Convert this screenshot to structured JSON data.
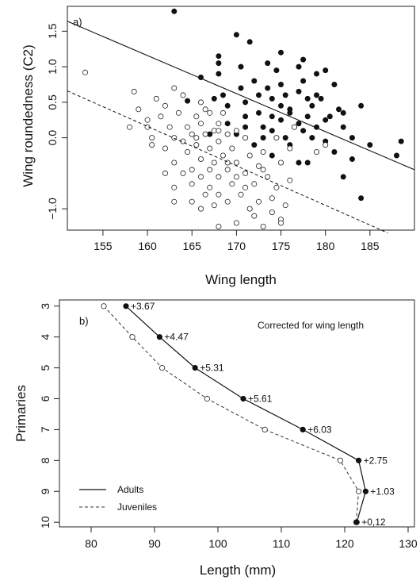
{
  "chart_data": [
    {
      "type": "scatter",
      "panel_label": "a)",
      "xlabel": "Wing length",
      "ylabel": "Wing roundedness (C2)",
      "xlim": [
        151,
        190
      ],
      "ylim": [
        -1.3,
        1.85
      ],
      "xticks": [
        155,
        160,
        165,
        170,
        175,
        180,
        185
      ],
      "yticks": [
        -1.0,
        0.0,
        0.5,
        1.0,
        1.5
      ],
      "ytick_labels": [
        "−1.0",
        "0.0",
        "0.5",
        "1.0",
        "1.5"
      ],
      "grid": false,
      "series": [
        {
          "marker": "filled",
          "points": [
            [
              163,
              1.78
            ],
            [
              164.5,
              0.52
            ],
            [
              166,
              0.85
            ],
            [
              167.5,
              0.55
            ],
            [
              168,
              1.15
            ],
            [
              168,
              1.05
            ],
            [
              168,
              0.9
            ],
            [
              168.5,
              0.6
            ],
            [
              169,
              0.45
            ],
            [
              169,
              0.2
            ],
            [
              170,
              1.45
            ],
            [
              170.5,
              1.0
            ],
            [
              170.5,
              0.7
            ],
            [
              171,
              0.5
            ],
            [
              171,
              0.3
            ],
            [
              171,
              0.15
            ],
            [
              171.5,
              1.35
            ],
            [
              172,
              0.8
            ],
            [
              172,
              -0.1
            ],
            [
              172.5,
              0.6
            ],
            [
              172.5,
              0.35
            ],
            [
              173,
              0.15
            ],
            [
              173.5,
              1.05
            ],
            [
              173.5,
              0.7
            ],
            [
              174,
              0.55
            ],
            [
              174,
              0.3
            ],
            [
              174,
              0.1
            ],
            [
              174.5,
              0.95
            ],
            [
              175,
              1.2
            ],
            [
              175,
              0.75
            ],
            [
              175,
              0.45
            ],
            [
              175,
              0.25
            ],
            [
              175.5,
              0.6
            ],
            [
              175.5,
              0.0
            ],
            [
              176,
              0.35
            ],
            [
              176,
              -0.1
            ],
            [
              176.5,
              0.15
            ],
            [
              177,
              1.0
            ],
            [
              177,
              0.65
            ],
            [
              177,
              0.2
            ],
            [
              177.5,
              1.1
            ],
            [
              177.5,
              0.8
            ],
            [
              177.5,
              0.1
            ],
            [
              178,
              0.55
            ],
            [
              178,
              0.3
            ],
            [
              178,
              -0.35
            ],
            [
              178.5,
              0.0
            ],
            [
              179,
              0.9
            ],
            [
              179,
              0.15
            ],
            [
              179.5,
              0.55
            ],
            [
              180,
              0.25
            ],
            [
              180,
              -0.05
            ],
            [
              180.5,
              0.3
            ],
            [
              181,
              0.75
            ],
            [
              181,
              -0.2
            ],
            [
              181.5,
              0.4
            ],
            [
              182,
              0.15
            ],
            [
              182,
              -0.55
            ],
            [
              183,
              0.0
            ],
            [
              184,
              0.45
            ],
            [
              184,
              -0.85
            ],
            [
              185,
              -0.1
            ],
            [
              188,
              -0.25
            ],
            [
              188.5,
              -0.05
            ],
            [
              167,
              0.05
            ],
            [
              170,
              0.05
            ],
            [
              173,
              0.0
            ],
            [
              174,
              -0.25
            ],
            [
              176,
              0.4
            ],
            [
              177,
              -0.35
            ],
            [
              179,
              0.6
            ],
            [
              180,
              0.95
            ],
            [
              182,
              0.35
            ],
            [
              183,
              -0.3
            ],
            [
              178.5,
              0.45
            ]
          ]
        },
        {
          "marker": "open",
          "points": [
            [
              153,
              0.92
            ],
            [
              158,
              0.15
            ],
            [
              158.5,
              0.65
            ],
            [
              159,
              0.4
            ],
            [
              160,
              0.25
            ],
            [
              160.5,
              0.0
            ],
            [
              160.5,
              -0.1
            ],
            [
              161,
              0.55
            ],
            [
              161.5,
              0.3
            ],
            [
              162,
              0.45
            ],
            [
              162,
              -0.15
            ],
            [
              162.5,
              0.15
            ],
            [
              163,
              0.0
            ],
            [
              163,
              -0.35
            ],
            [
              163,
              -0.7
            ],
            [
              163,
              -0.9
            ],
            [
              163.5,
              0.35
            ],
            [
              164,
              0.6
            ],
            [
              164,
              -0.5
            ],
            [
              164.5,
              0.15
            ],
            [
              164.5,
              -0.2
            ],
            [
              165,
              0.05
            ],
            [
              165,
              -0.45
            ],
            [
              165,
              -0.65
            ],
            [
              165.5,
              0.3
            ],
            [
              165.5,
              -0.1
            ],
            [
              166,
              0.5
            ],
            [
              166,
              0.2
            ],
            [
              166,
              -0.3
            ],
            [
              166,
              -0.55
            ],
            [
              166,
              -1.0
            ],
            [
              166.5,
              0.05
            ],
            [
              166.5,
              -0.8
            ],
            [
              167,
              0.35
            ],
            [
              167,
              -0.15
            ],
            [
              167,
              -0.45
            ],
            [
              167,
              -0.7
            ],
            [
              167.5,
              0.1
            ],
            [
              167.5,
              -0.35
            ],
            [
              167.5,
              -0.95
            ],
            [
              168,
              0.2
            ],
            [
              168,
              -0.05
            ],
            [
              168,
              -0.55
            ],
            [
              168,
              -0.8
            ],
            [
              168,
              -1.25
            ],
            [
              168.5,
              0.35
            ],
            [
              168.5,
              -0.25
            ],
            [
              169,
              0.05
            ],
            [
              169,
              -0.45
            ],
            [
              169,
              -0.9
            ],
            [
              169.5,
              -0.15
            ],
            [
              169.5,
              -0.65
            ],
            [
              170,
              0.1
            ],
            [
              170,
              -0.35
            ],
            [
              170,
              -1.2
            ],
            [
              170.5,
              -0.8
            ],
            [
              171,
              0.0
            ],
            [
              171,
              -0.5
            ],
            [
              171.5,
              -0.25
            ],
            [
              171.5,
              -1.0
            ],
            [
              172,
              -0.65
            ],
            [
              172,
              -1.1
            ],
            [
              172.5,
              -0.4
            ],
            [
              172.5,
              -0.9
            ],
            [
              173,
              -0.2
            ],
            [
              173,
              -1.25
            ],
            [
              173.5,
              -0.55
            ],
            [
              174,
              -0.85
            ],
            [
              174,
              -1.05
            ],
            [
              174.5,
              0.0
            ],
            [
              174.5,
              -0.7
            ],
            [
              175,
              -0.35
            ],
            [
              175,
              -1.15
            ],
            [
              175,
              -1.2
            ],
            [
              175.5,
              -0.95
            ],
            [
              176,
              -0.15
            ],
            [
              176,
              -0.6
            ],
            [
              165,
              -0.9
            ],
            [
              162,
              -0.5
            ],
            [
              160,
              0.15
            ],
            [
              164,
              -0.05
            ],
            [
              166.5,
              0.4
            ],
            [
              169,
              -0.35
            ],
            [
              171,
              -0.7
            ],
            [
              173,
              -0.45
            ],
            [
              176.5,
              0.15
            ],
            [
              179,
              -0.2
            ],
            [
              180,
              -0.1
            ],
            [
              163,
              0.7
            ],
            [
              165.5,
              0.0
            ],
            [
              168,
              0.1
            ],
            [
              170,
              -0.55
            ]
          ]
        }
      ],
      "fit_lines": [
        {
          "style": "solid",
          "x": [
            151,
            190
          ],
          "y": [
            1.64,
            -0.45
          ]
        },
        {
          "style": "dashed",
          "x": [
            151,
            187
          ],
          "y": [
            0.66,
            -1.34
          ]
        }
      ]
    },
    {
      "type": "line",
      "panel_label": "b)",
      "title": "Corrected for wing length",
      "xlabel": "Length (mm)",
      "ylabel": "Primaries",
      "xlim": [
        75,
        131
      ],
      "ylim": [
        10.15,
        2.8
      ],
      "xticks": [
        80,
        90,
        100,
        110,
        120,
        130
      ],
      "yticks": [
        3,
        4,
        5,
        6,
        7,
        8,
        9,
        10
      ],
      "grid": false,
      "legend_position": "bottom-left",
      "series": [
        {
          "name": "Adults",
          "style": "solid",
          "marker": "filled",
          "x": [
            85.5,
            90.8,
            96.4,
            104.0,
            113.4,
            122.2,
            123.3,
            121.9
          ],
          "y": [
            3,
            4,
            5,
            6,
            7,
            8,
            9,
            10
          ],
          "labels": [
            "+3.67",
            "+4.47",
            "+5.31",
            "+5.61",
            "+6.03",
            "+2.75",
            "+1.03",
            "+0,12"
          ]
        },
        {
          "name": "Juveniles",
          "style": "dashed",
          "marker": "open",
          "x": [
            82.0,
            86.5,
            91.2,
            98.3,
            107.4,
            119.3,
            122.2,
            121.8
          ],
          "y": [
            3,
            4,
            5,
            6,
            7,
            8,
            9,
            10
          ]
        }
      ]
    }
  ]
}
